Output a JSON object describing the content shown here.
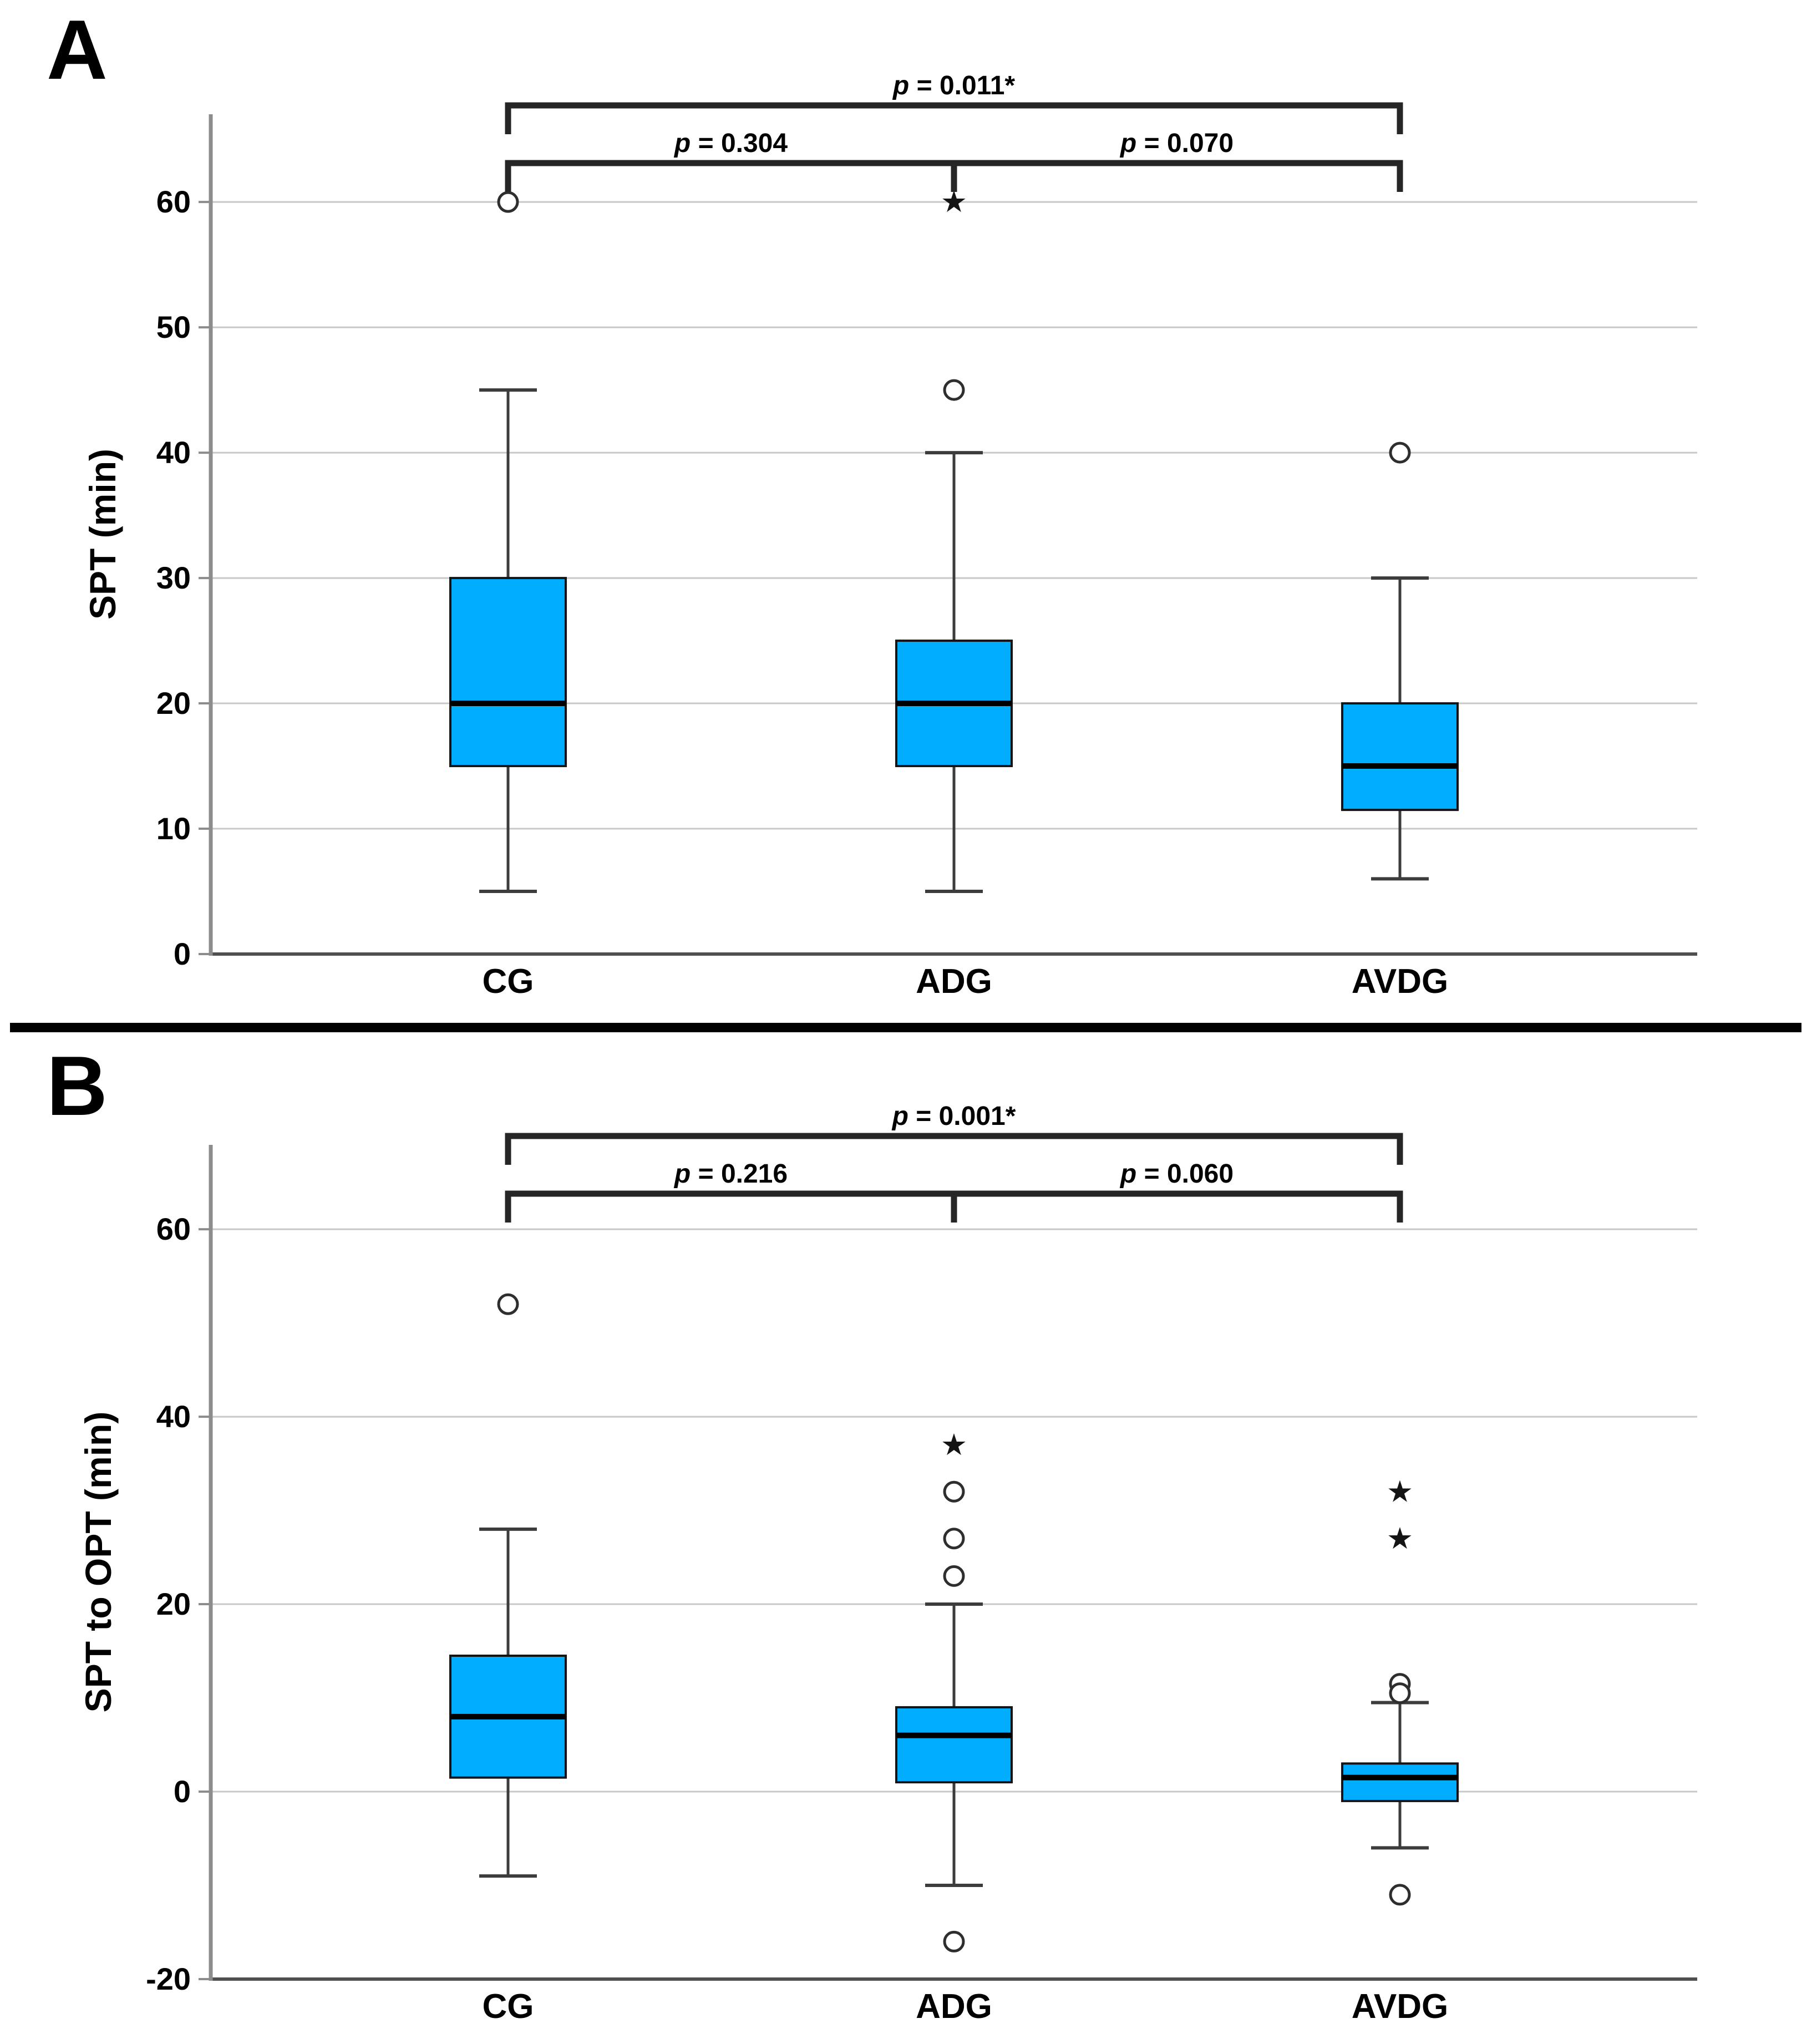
{
  "style": {
    "background": "#FFFFFF",
    "box_fill": "#00ADFF",
    "box_stroke": "#141414",
    "median_color": "#000000",
    "whisker_color": "#3C3C3C",
    "gridline_color": "#C8C8C8",
    "axis_color": "#8C8C8C",
    "baseline_color": "#4F4F4F",
    "bracket_color": "#262626",
    "outlier_stroke": "#2E2E2E",
    "text_color": "#000000"
  },
  "chart_data": [
    {
      "type": "box",
      "panel_label": "A",
      "ylabel": "SPT (min)",
      "xlabel": "",
      "categories": [
        "CG",
        "ADG",
        "AVDG"
      ],
      "yticks": [
        0,
        10,
        20,
        30,
        40,
        50,
        60
      ],
      "ylim": [
        0,
        67
      ],
      "grid": "horizontal",
      "legend": "none",
      "boxes": [
        {
          "category": "CG",
          "q1": 15,
          "median": 20,
          "q3": 30,
          "whisker_low": 5,
          "whisker_high": 45,
          "outliers_circle": [
            60
          ],
          "outliers_star": []
        },
        {
          "category": "ADG",
          "q1": 15,
          "median": 20,
          "q3": 25,
          "whisker_low": 5,
          "whisker_high": 40,
          "outliers_circle": [
            45
          ],
          "outliers_star": [
            60
          ]
        },
        {
          "category": "AVDG",
          "q1": 11.5,
          "median": 15,
          "q3": 20,
          "whisker_low": 6,
          "whisker_high": 30,
          "outliers_circle": [
            40
          ],
          "outliers_star": []
        }
      ],
      "comparisons": [
        {
          "from": "CG",
          "to": "AVDG",
          "label": "p = 0.011*",
          "level": "top"
        },
        {
          "from": "CG",
          "to": "ADG",
          "label": "p = 0.304",
          "level": "low"
        },
        {
          "from": "ADG",
          "to": "AVDG",
          "label": "p = 0.070",
          "level": "low"
        }
      ]
    },
    {
      "type": "box",
      "panel_label": "B",
      "ylabel": "SPT to OPT (min)",
      "xlabel": "",
      "categories": [
        "CG",
        "ADG",
        "AVDG"
      ],
      "yticks": [
        -20,
        0,
        20,
        40,
        60
      ],
      "ylim": [
        -20,
        69
      ],
      "grid": "horizontal",
      "legend": "none",
      "boxes": [
        {
          "category": "CG",
          "q1": 1.5,
          "median": 8,
          "q3": 14.5,
          "whisker_low": -9,
          "whisker_high": 28,
          "outliers_circle": [
            52
          ],
          "outliers_star": []
        },
        {
          "category": "ADG",
          "q1": 1,
          "median": 6,
          "q3": 9,
          "whisker_low": -10,
          "whisker_high": 20,
          "outliers_circle": [
            32,
            27,
            23,
            -16
          ],
          "outliers_star": [
            37
          ]
        },
        {
          "category": "AVDG",
          "q1": -1,
          "median": 1.5,
          "q3": 3,
          "whisker_low": -6,
          "whisker_high": 9.5,
          "outliers_circle": [
            11.5,
            10.5,
            -11
          ],
          "outliers_star": [
            32,
            27
          ]
        }
      ],
      "comparisons": [
        {
          "from": "CG",
          "to": "AVDG",
          "label": "p = 0.001*",
          "level": "top"
        },
        {
          "from": "CG",
          "to": "ADG",
          "label": "p = 0.216",
          "level": "low"
        },
        {
          "from": "ADG",
          "to": "AVDG",
          "label": "p = 0.060",
          "level": "low"
        }
      ]
    }
  ]
}
